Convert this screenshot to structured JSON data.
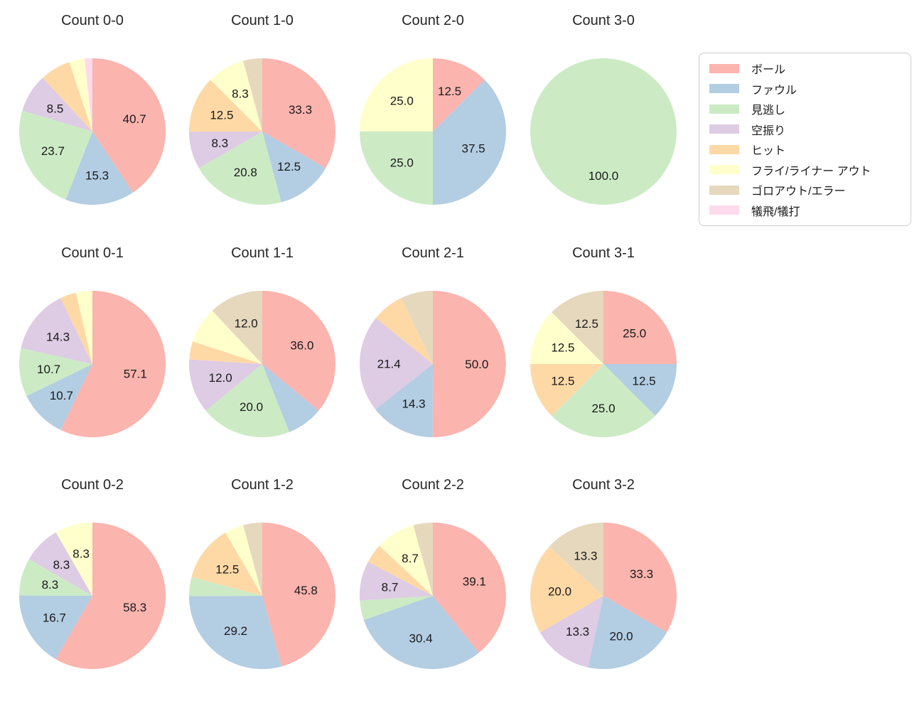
{
  "page": {
    "background": "#ffffff",
    "text_color": "#1a1a1a"
  },
  "legend": {
    "position": "upper right",
    "items": [
      {
        "label": "ボール",
        "color": "#fbb4ae"
      },
      {
        "label": "ファウル",
        "color": "#b3cde3"
      },
      {
        "label": "見逃し",
        "color": "#ccebc5"
      },
      {
        "label": "空振り",
        "color": "#decbe4"
      },
      {
        "label": "ヒット",
        "color": "#fed9a6"
      },
      {
        "label": "フライ/ライナー アウト",
        "color": "#ffffcc"
      },
      {
        "label": "ゴロアウト/エラー",
        "color": "#e5d8bd"
      },
      {
        "label": "犠飛/犠打",
        "color": "#fddaec"
      }
    ]
  },
  "chart_data": {
    "type": "pie",
    "layout": {
      "rows": 3,
      "cols": 4,
      "legend_position": "upper right",
      "grid": false
    },
    "start_angle": "top",
    "direction": "clockwise",
    "pct_label_rule": "percentage text shown only for slices greater than 8%",
    "categories": [
      "ボール",
      "ファウル",
      "見逃し",
      "空振り",
      "ヒット",
      "フライ/ライナー アウト",
      "ゴロアウト/エラー",
      "犠飛/犠打"
    ],
    "charts": [
      {
        "title": "Count 0-0",
        "slices": [
          {
            "category": "ボール",
            "pct": 40.7,
            "label": "40.7"
          },
          {
            "category": "ファウル",
            "pct": 15.3,
            "label": "15.3"
          },
          {
            "category": "見逃し",
            "pct": 23.7,
            "label": "23.7"
          },
          {
            "category": "空振り",
            "pct": 8.5,
            "label": "8.5"
          },
          {
            "category": "ヒット",
            "pct": 6.8,
            "label": ""
          },
          {
            "category": "フライ/ライナー アウト",
            "pct": 3.4,
            "label": ""
          },
          {
            "category": "犠飛/犠打",
            "pct": 1.7,
            "label": ""
          }
        ]
      },
      {
        "title": "Count 1-0",
        "slices": [
          {
            "category": "ボール",
            "pct": 33.3,
            "label": "33.3"
          },
          {
            "category": "ファウル",
            "pct": 12.5,
            "label": "12.5"
          },
          {
            "category": "見逃し",
            "pct": 20.8,
            "label": "20.8"
          },
          {
            "category": "空振り",
            "pct": 8.3,
            "label": "8.3"
          },
          {
            "category": "ヒット",
            "pct": 12.5,
            "label": "12.5"
          },
          {
            "category": "フライ/ライナー アウト",
            "pct": 8.3,
            "label": "8.3"
          },
          {
            "category": "ゴロアウト/エラー",
            "pct": 4.2,
            "label": ""
          }
        ]
      },
      {
        "title": "Count 2-0",
        "slices": [
          {
            "category": "ボール",
            "pct": 12.5,
            "label": "12.5"
          },
          {
            "category": "ファウル",
            "pct": 37.5,
            "label": "37.5"
          },
          {
            "category": "見逃し",
            "pct": 25.0,
            "label": "25.0"
          },
          {
            "category": "フライ/ライナー アウト",
            "pct": 25.0,
            "label": "25.0"
          }
        ]
      },
      {
        "title": "Count 3-0",
        "slices": [
          {
            "category": "見逃し",
            "pct": 100.0,
            "label": "100.0"
          }
        ]
      },
      {
        "title": "Count 0-1",
        "slices": [
          {
            "category": "ボール",
            "pct": 57.1,
            "label": "57.1"
          },
          {
            "category": "ファウル",
            "pct": 10.7,
            "label": "10.7"
          },
          {
            "category": "見逃し",
            "pct": 10.7,
            "label": "10.7"
          },
          {
            "category": "空振り",
            "pct": 14.3,
            "label": "14.3"
          },
          {
            "category": "ヒット",
            "pct": 3.6,
            "label": ""
          },
          {
            "category": "フライ/ライナー アウト",
            "pct": 3.6,
            "label": ""
          }
        ]
      },
      {
        "title": "Count 1-1",
        "slices": [
          {
            "category": "ボール",
            "pct": 36.0,
            "label": "36.0"
          },
          {
            "category": "ファウル",
            "pct": 8.0,
            "label": ""
          },
          {
            "category": "見逃し",
            "pct": 20.0,
            "label": "20.0"
          },
          {
            "category": "空振り",
            "pct": 12.0,
            "label": "12.0"
          },
          {
            "category": "ヒット",
            "pct": 4.0,
            "label": ""
          },
          {
            "category": "フライ/ライナー アウト",
            "pct": 8.0,
            "label": ""
          },
          {
            "category": "ゴロアウト/エラー",
            "pct": 12.0,
            "label": "12.0"
          }
        ]
      },
      {
        "title": "Count 2-1",
        "slices": [
          {
            "category": "ボール",
            "pct": 50.0,
            "label": "50.0"
          },
          {
            "category": "ファウル",
            "pct": 14.3,
            "label": "14.3"
          },
          {
            "category": "空振り",
            "pct": 21.4,
            "label": "21.4"
          },
          {
            "category": "ヒット",
            "pct": 7.1,
            "label": ""
          },
          {
            "category": "ゴロアウト/エラー",
            "pct": 7.1,
            "label": ""
          }
        ]
      },
      {
        "title": "Count 3-1",
        "slices": [
          {
            "category": "ボール",
            "pct": 25.0,
            "label": "25.0"
          },
          {
            "category": "ファウル",
            "pct": 12.5,
            "label": "12.5"
          },
          {
            "category": "見逃し",
            "pct": 25.0,
            "label": "25.0"
          },
          {
            "category": "ヒット",
            "pct": 12.5,
            "label": "12.5"
          },
          {
            "category": "フライ/ライナー アウト",
            "pct": 12.5,
            "label": "12.5"
          },
          {
            "category": "ゴロアウト/エラー",
            "pct": 12.5,
            "label": "12.5"
          }
        ]
      },
      {
        "title": "Count 0-2",
        "slices": [
          {
            "category": "ボール",
            "pct": 58.3,
            "label": "58.3"
          },
          {
            "category": "ファウル",
            "pct": 16.7,
            "label": "16.7"
          },
          {
            "category": "見逃し",
            "pct": 8.3,
            "label": "8.3"
          },
          {
            "category": "空振り",
            "pct": 8.3,
            "label": "8.3"
          },
          {
            "category": "フライ/ライナー アウト",
            "pct": 8.3,
            "label": "8.3"
          }
        ]
      },
      {
        "title": "Count 1-2",
        "slices": [
          {
            "category": "ボール",
            "pct": 45.8,
            "label": "45.8"
          },
          {
            "category": "ファウル",
            "pct": 29.2,
            "label": "29.2"
          },
          {
            "category": "見逃し",
            "pct": 4.2,
            "label": ""
          },
          {
            "category": "ヒット",
            "pct": 12.5,
            "label": "12.5"
          },
          {
            "category": "フライ/ライナー アウト",
            "pct": 4.2,
            "label": ""
          },
          {
            "category": "ゴロアウト/エラー",
            "pct": 4.2,
            "label": ""
          }
        ]
      },
      {
        "title": "Count 2-2",
        "slices": [
          {
            "category": "ボール",
            "pct": 39.1,
            "label": "39.1"
          },
          {
            "category": "ファウル",
            "pct": 30.4,
            "label": "30.4"
          },
          {
            "category": "見逃し",
            "pct": 4.3,
            "label": ""
          },
          {
            "category": "空振り",
            "pct": 8.7,
            "label": "8.7"
          },
          {
            "category": "ヒット",
            "pct": 4.3,
            "label": ""
          },
          {
            "category": "フライ/ライナー アウト",
            "pct": 8.7,
            "label": "8.7"
          },
          {
            "category": "ゴロアウト/エラー",
            "pct": 4.3,
            "label": ""
          }
        ]
      },
      {
        "title": "Count 3-2",
        "slices": [
          {
            "category": "ボール",
            "pct": 33.3,
            "label": "33.3"
          },
          {
            "category": "ファウル",
            "pct": 20.0,
            "label": "20.0"
          },
          {
            "category": "空振り",
            "pct": 13.3,
            "label": "13.3"
          },
          {
            "category": "ヒット",
            "pct": 20.0,
            "label": "20.0"
          },
          {
            "category": "ゴロアウト/エラー",
            "pct": 13.3,
            "label": "13.3"
          }
        ]
      }
    ]
  }
}
